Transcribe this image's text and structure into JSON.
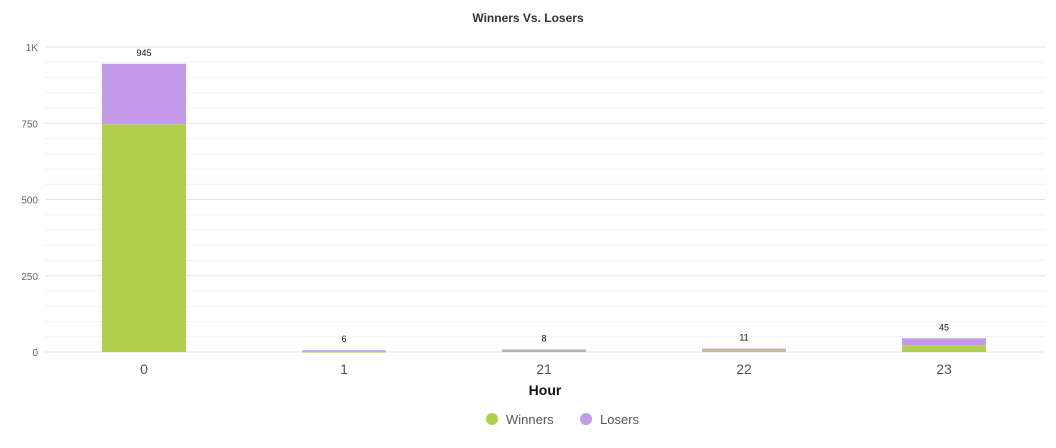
{
  "chart_data": {
    "type": "bar",
    "stacked": true,
    "title": "Winners Vs. Losers",
    "xlabel": "Hour",
    "ylabel": "",
    "categories": [
      "0",
      "1",
      "21",
      "22",
      "23"
    ],
    "series": [
      {
        "name": "Winners",
        "color": "#b0d04d",
        "values": [
          747,
          2,
          5,
          6,
          22
        ]
      },
      {
        "name": "Losers",
        "color": "#c39ae8",
        "values": [
          198,
          4,
          3,
          5,
          23
        ]
      }
    ],
    "totals": [
      945,
      6,
      8,
      11,
      45
    ],
    "ylim": [
      0,
      1000
    ],
    "yticks": [
      0,
      250,
      500,
      750,
      1000
    ],
    "ytick_labels": [
      "0",
      "250",
      "500",
      "750",
      "1K"
    ],
    "grid": true,
    "legend_position": "bottom-center"
  }
}
